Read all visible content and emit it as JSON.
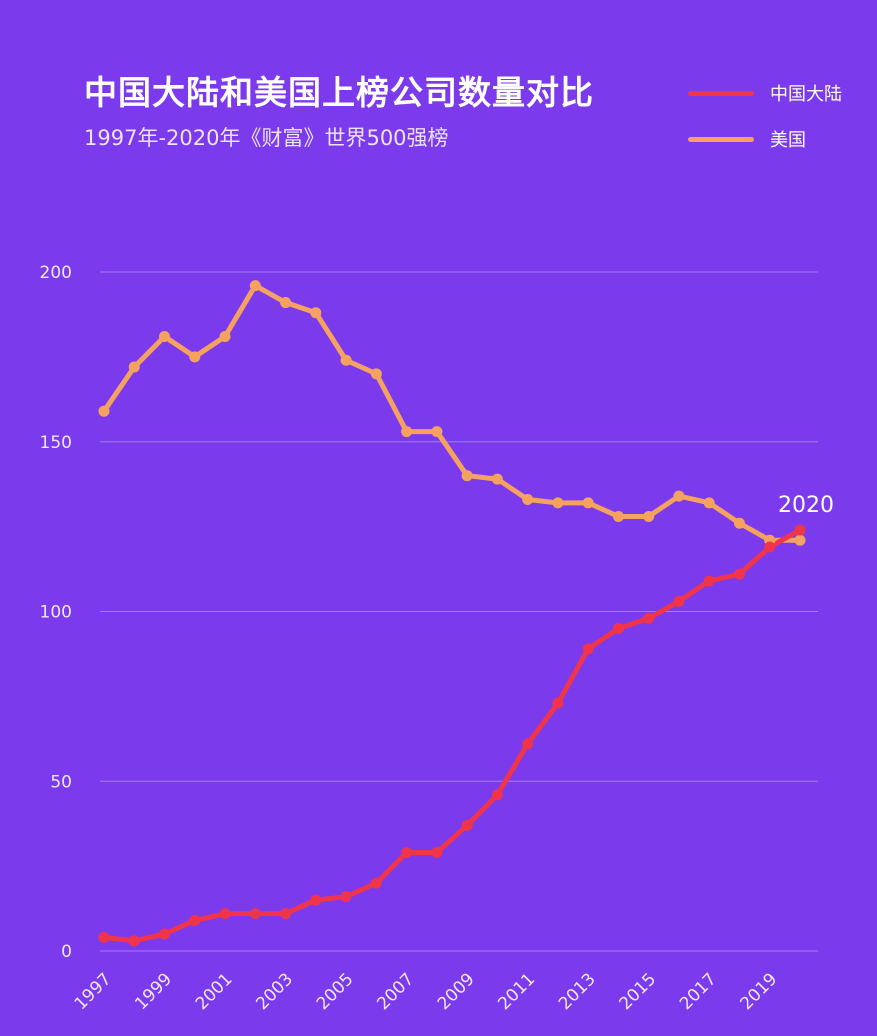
{
  "chart_data": {
    "type": "line",
    "title": "中国大陆和美国上榜公司数量对比",
    "subtitle": "1997年-2020年《财富》世界500强榜",
    "x": [
      1997,
      1998,
      1999,
      2000,
      2001,
      2002,
      2003,
      2004,
      2005,
      2006,
      2007,
      2008,
      2009,
      2010,
      2011,
      2012,
      2013,
      2014,
      2015,
      2016,
      2017,
      2018,
      2019,
      2020
    ],
    "x_tick_labels": [
      "1997",
      "1999",
      "2001",
      "2003",
      "2005",
      "2007",
      "2009",
      "2011",
      "2013",
      "2015",
      "2017",
      "2019"
    ],
    "y_tick_labels": [
      "0",
      "50",
      "100",
      "150",
      "200"
    ],
    "ylim": [
      0,
      200
    ],
    "grid": true,
    "legend_position": "top-right",
    "annotation": "2020",
    "series": [
      {
        "name": "中国大陆",
        "color": "#f0354a",
        "values": [
          4,
          3,
          5,
          9,
          11,
          11,
          11,
          15,
          16,
          20,
          29,
          29,
          37,
          46,
          61,
          73,
          89,
          95,
          98,
          103,
          109,
          111,
          119,
          124
        ]
      },
      {
        "name": "美国",
        "color": "#f5a261",
        "values": [
          159,
          172,
          181,
          175,
          181,
          196,
          191,
          188,
          174,
          170,
          153,
          153,
          140,
          139,
          133,
          132,
          132,
          128,
          128,
          134,
          132,
          126,
          121,
          121
        ]
      }
    ]
  }
}
